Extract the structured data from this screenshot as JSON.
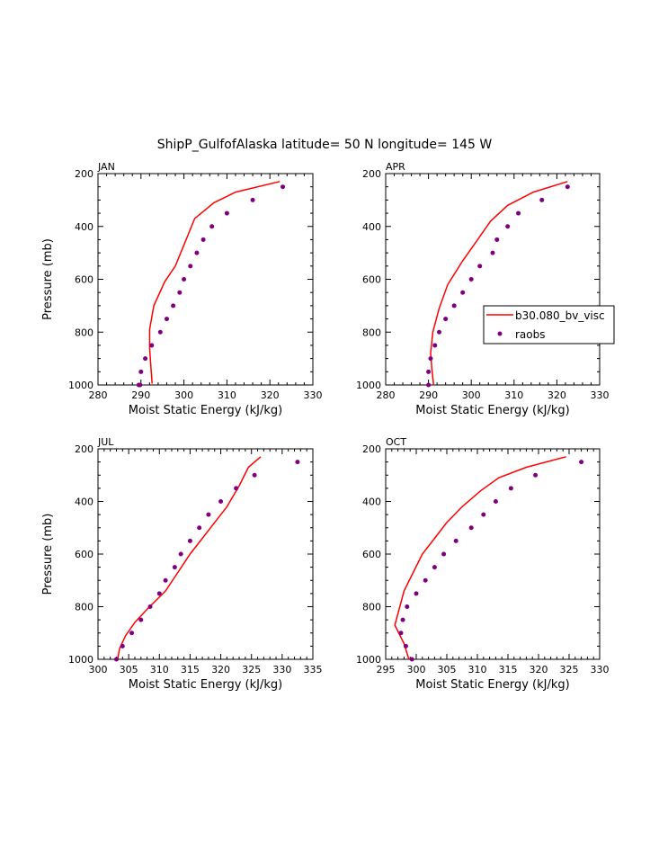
{
  "title": "ShipP_GulfofAlaska  latitude= 50 N longitude= 145 W",
  "colors": {
    "model_line": "#ff0000",
    "obs_points": "#7f007f",
    "axes": "#000000"
  },
  "legend": {
    "placement": "right of APR panel",
    "model_label": "b30.080_bv_visc",
    "obs_label": "raobs"
  },
  "chart_data": [
    {
      "type": "line",
      "panel_label": "JAN",
      "xlabel": "Moist Static Energy (kJ/kg)",
      "ylabel": "Pressure (mb)",
      "xlim": [
        280,
        330
      ],
      "ylim": [
        1000,
        200
      ],
      "xticks": [
        280,
        290,
        300,
        310,
        320,
        330
      ],
      "yticks": [
        200,
        400,
        600,
        800,
        1000
      ],
      "series": [
        {
          "name": "b30.080_bv_visc",
          "kind": "line",
          "x": [
            322.3,
            312,
            307,
            302.5,
            301,
            299.5,
            298,
            295.5,
            293,
            292,
            292,
            292.3,
            292.6
          ],
          "y": [
            230,
            270,
            310,
            370,
            430,
            490,
            550,
            610,
            700,
            790,
            860,
            930,
            995
          ]
        },
        {
          "name": "raobs",
          "kind": "scatter",
          "x": [
            323,
            316,
            310,
            306.5,
            304.5,
            303,
            301.5,
            300,
            299,
            297.5,
            296,
            294.5,
            292.5,
            291,
            290,
            289.5,
            289.8
          ],
          "y": [
            250,
            300,
            350,
            400,
            450,
            500,
            550,
            600,
            650,
            700,
            750,
            800,
            850,
            900,
            950,
            1000,
            1000
          ]
        }
      ]
    },
    {
      "type": "line",
      "panel_label": "APR",
      "xlabel": "Moist Static Energy (kJ/kg)",
      "ylabel": "",
      "xlim": [
        280,
        330
      ],
      "ylim": [
        1000,
        200
      ],
      "xticks": [
        280,
        290,
        300,
        310,
        320,
        330
      ],
      "yticks": [
        200,
        400,
        600,
        800,
        1000
      ],
      "series": [
        {
          "name": "b30.080_bv_visc",
          "kind": "line",
          "x": [
            322.5,
            314.5,
            308.5,
            304.5,
            301.5,
            298,
            294.5,
            292.5,
            291,
            290.5,
            290.8,
            291.2
          ],
          "y": [
            230,
            270,
            320,
            380,
            450,
            530,
            620,
            710,
            800,
            880,
            940,
            1000
          ]
        },
        {
          "name": "raobs",
          "kind": "scatter",
          "x": [
            322.5,
            316.5,
            311,
            308.5,
            306,
            305,
            302,
            300,
            298,
            296,
            294,
            292.5,
            291.5,
            290.5,
            290,
            290
          ],
          "y": [
            250,
            300,
            350,
            400,
            450,
            500,
            550,
            600,
            650,
            700,
            750,
            800,
            850,
            900,
            950,
            1000
          ]
        }
      ]
    },
    {
      "type": "line",
      "panel_label": "JUL",
      "xlabel": "Moist Static Energy (kJ/kg)",
      "ylabel": "Pressure (mb)",
      "xlim": [
        300,
        335
      ],
      "ylim": [
        1000,
        200
      ],
      "xticks": [
        300,
        305,
        310,
        315,
        320,
        325,
        330,
        335
      ],
      "yticks": [
        200,
        400,
        600,
        800,
        1000
      ],
      "series": [
        {
          "name": "b30.080_bv_visc",
          "kind": "line",
          "x": [
            326.5,
            324.5,
            323,
            321,
            319,
            317,
            315,
            313,
            311,
            308,
            306,
            304.5,
            303.5,
            303.2
          ],
          "y": [
            230,
            270,
            340,
            420,
            480,
            540,
            600,
            670,
            740,
            810,
            860,
            910,
            960,
            1000
          ]
        },
        {
          "name": "raobs",
          "kind": "scatter",
          "x": [
            332.5,
            325.5,
            322.5,
            320,
            318,
            316.5,
            315,
            313.5,
            312.5,
            311,
            310,
            308.5,
            307,
            305.5,
            304,
            303
          ],
          "y": [
            250,
            300,
            350,
            400,
            450,
            500,
            550,
            600,
            650,
            700,
            750,
            800,
            850,
            900,
            950,
            1000
          ]
        }
      ]
    },
    {
      "type": "line",
      "panel_label": "OCT",
      "xlabel": "Moist Static Energy (kJ/kg)",
      "ylabel": "",
      "xlim": [
        295,
        330
      ],
      "ylim": [
        1000,
        200
      ],
      "xticks": [
        295,
        300,
        305,
        310,
        315,
        320,
        325,
        330
      ],
      "yticks": [
        200,
        400,
        600,
        800,
        1000
      ],
      "series": [
        {
          "name": "b30.080_bv_visc",
          "kind": "line",
          "x": [
            324.5,
            318,
            313.5,
            310.5,
            307.5,
            305,
            303,
            301,
            299.5,
            298,
            296.5,
            298,
            298.8
          ],
          "y": [
            230,
            270,
            310,
            360,
            420,
            480,
            540,
            600,
            670,
            740,
            870,
            940,
            1000
          ]
        },
        {
          "name": "raobs",
          "kind": "scatter",
          "x": [
            327,
            319.5,
            315.5,
            313,
            311,
            309,
            306.5,
            304.5,
            303,
            301.5,
            300,
            298.5,
            297.8,
            297.5,
            298.3,
            299.3
          ],
          "y": [
            250,
            300,
            350,
            400,
            450,
            500,
            550,
            600,
            650,
            700,
            750,
            800,
            850,
            900,
            950,
            1000
          ]
        }
      ]
    }
  ]
}
